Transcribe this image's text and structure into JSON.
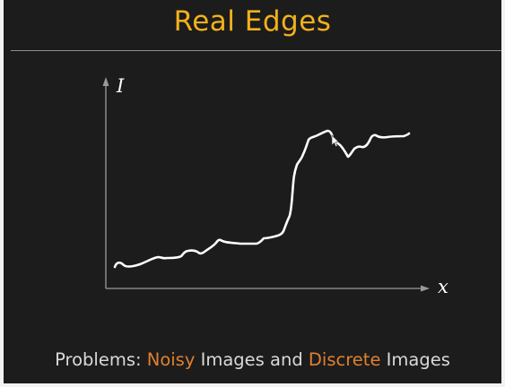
{
  "slide": {
    "title": "Real Edges",
    "axes": {
      "y_label": "I",
      "x_label": "x"
    },
    "colors": {
      "background": "#1c1c1c",
      "title": "#f2b11c",
      "highlight": "#e0802f",
      "text": "#d9d9d9",
      "curve": "#ffffff"
    },
    "caption": {
      "prefix": "Problems: ",
      "word1": "Noisy",
      "middle": " Images and ",
      "word2": "Discrete",
      "suffix": " Images"
    }
  }
}
